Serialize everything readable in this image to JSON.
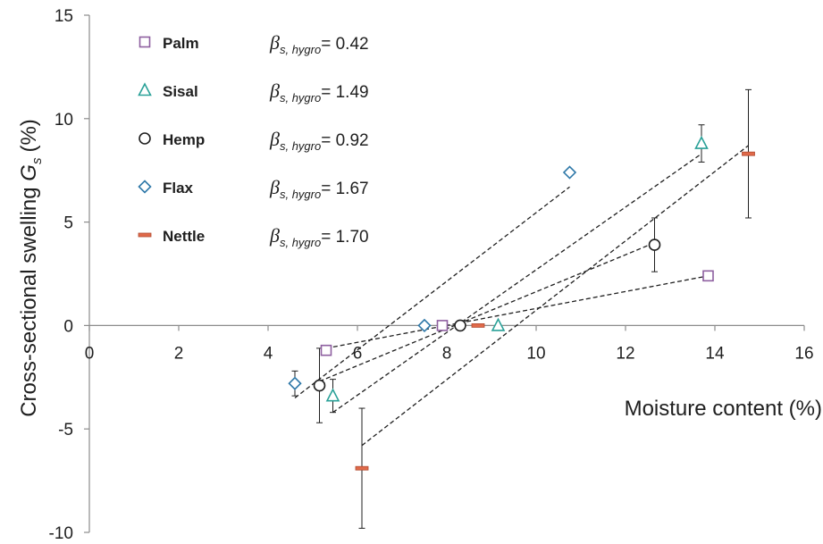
{
  "chart_data": {
    "type": "scatter",
    "xlabel": "Moisture content (%)",
    "ylabel_main": "Cross-sectional swelling ",
    "ylabel_symbol": "G",
    "ylabel_sub": "s",
    "ylabel_unit": "(%)",
    "xlim": [
      0,
      16
    ],
    "ylim": [
      -10,
      15
    ],
    "xticks": [
      "0",
      "2",
      "4",
      "6",
      "8",
      "10",
      "12",
      "14",
      "16"
    ],
    "yticks": [
      "15",
      "10",
      "5",
      "0",
      "-5",
      "-10"
    ],
    "grid": false,
    "legend_placement": "top-left",
    "series": [
      {
        "name": "Palm",
        "marker": "square",
        "color": "#8e5fa0",
        "beta_symbol": "β",
        "beta_sub": "s, hygro",
        "beta_value": "= 0.42",
        "points": [
          {
            "x": 5.3,
            "y": -1.2,
            "err": 0.2
          },
          {
            "x": 7.9,
            "y": 0.0,
            "err": 0
          },
          {
            "x": 13.85,
            "y": 2.4,
            "err": 0
          }
        ],
        "fit": [
          [
            5.3,
            -1.1
          ],
          [
            13.85,
            2.4
          ]
        ]
      },
      {
        "name": "Sisal",
        "marker": "triangle",
        "color": "#2aa198",
        "beta_symbol": "β",
        "beta_sub": "s, hygro",
        "beta_value": "= 1.49",
        "points": [
          {
            "x": 5.45,
            "y": -3.4,
            "err": 0.8
          },
          {
            "x": 9.15,
            "y": 0.0,
            "err": 0
          },
          {
            "x": 13.7,
            "y": 8.8,
            "err": 0.9
          }
        ],
        "fit": [
          [
            5.45,
            -4.2
          ],
          [
            13.7,
            8.3
          ]
        ]
      },
      {
        "name": "Hemp",
        "marker": "circle",
        "color": "#1f1f1f",
        "beta_symbol": "β",
        "beta_sub": "s, hygro",
        "beta_value": "= 0.92",
        "points": [
          {
            "x": 5.15,
            "y": -2.9,
            "err": 1.8
          },
          {
            "x": 8.3,
            "y": 0.0,
            "err": 0
          },
          {
            "x": 12.65,
            "y": 3.9,
            "err": 1.3
          }
        ],
        "fit": [
          [
            5.15,
            -2.7
          ],
          [
            12.65,
            4.0
          ]
        ]
      },
      {
        "name": "Flax",
        "marker": "diamond",
        "color": "#2e78a8",
        "beta_symbol": "β",
        "beta_sub": "s, hygro",
        "beta_value": "= 1.67",
        "points": [
          {
            "x": 4.6,
            "y": -2.8,
            "err": 0.6
          },
          {
            "x": 7.5,
            "y": 0.0,
            "err": 0
          },
          {
            "x": 10.75,
            "y": 7.4,
            "err": 0
          }
        ],
        "fit": [
          [
            4.6,
            -3.5
          ],
          [
            10.75,
            6.7
          ]
        ]
      },
      {
        "name": "Nettle",
        "marker": "dash",
        "color": "#e06a4a",
        "beta_symbol": "β",
        "beta_sub": "s, hygro",
        "beta_value": "= 1.70",
        "points": [
          {
            "x": 6.1,
            "y": -6.9,
            "err": 2.9
          },
          {
            "x": 8.7,
            "y": 0.0,
            "err": 0
          },
          {
            "x": 14.75,
            "y": 8.3,
            "err": 3.1
          }
        ],
        "fit": [
          [
            6.1,
            -5.8
          ],
          [
            14.75,
            8.7
          ]
        ]
      }
    ]
  }
}
